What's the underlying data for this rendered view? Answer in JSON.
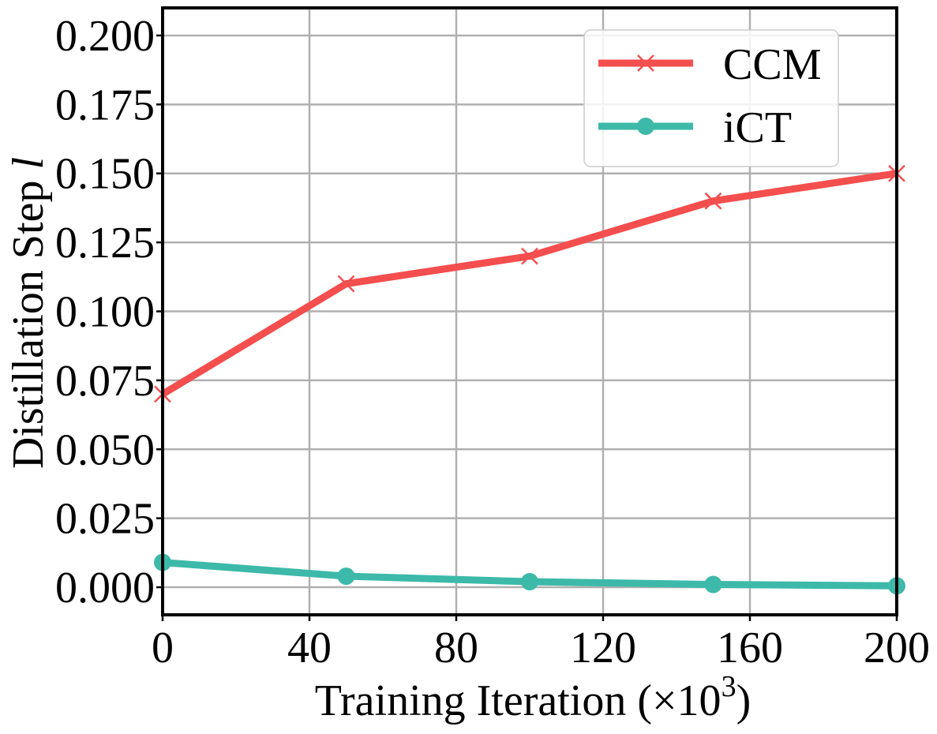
{
  "chart_data": {
    "type": "line",
    "title": "",
    "xlabel": "Training Iteration (×10",
    "xlabel_sup": "3",
    "xlabel_end": ")",
    "ylabel": "Distillation Step ",
    "ylabel_var": "l",
    "xlim": [
      0,
      200
    ],
    "ylim": [
      -0.01,
      0.21
    ],
    "xticks": [
      0,
      40,
      80,
      120,
      160,
      200
    ],
    "xtick_labels": [
      "0",
      "40",
      "80",
      "120",
      "160",
      "200"
    ],
    "yticks": [
      0.0,
      0.025,
      0.05,
      0.075,
      0.1,
      0.125,
      0.15,
      0.175,
      0.2
    ],
    "ytick_labels": [
      "0.000",
      "0.025",
      "0.050",
      "0.075",
      "0.100",
      "0.125",
      "0.150",
      "0.175",
      "0.200"
    ],
    "grid": true,
    "legend_position": "top-right",
    "x": [
      0,
      50,
      100,
      150,
      200
    ],
    "series": [
      {
        "name": "CCM",
        "marker": "x",
        "color": "#f44e4e",
        "values": [
          0.07,
          0.11,
          0.12,
          0.14,
          0.15
        ]
      },
      {
        "name": "iCT",
        "marker": "circle",
        "color": "#3db9a9",
        "values": [
          0.009,
          0.004,
          0.002,
          0.001,
          0.0005
        ]
      }
    ]
  }
}
